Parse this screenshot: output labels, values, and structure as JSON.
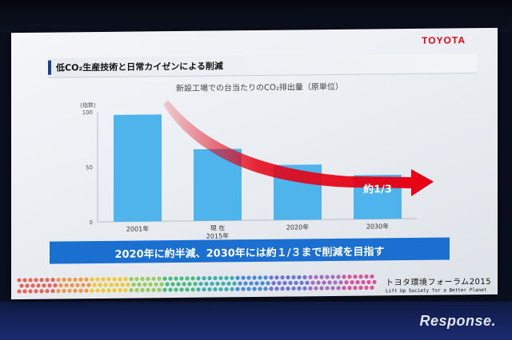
{
  "slide": {
    "brand": "TOYOTA",
    "title": "低CO₂生産技術と日常カイゼンによる削減",
    "banner": "2020年に約半減、2030年には約１/３まで削減を目指す",
    "forum_name": "トヨタ環境フォーラム2015",
    "forum_sub": "Lift Up Society for a Better Planet"
  },
  "watermark": "Response.",
  "chart_data": {
    "type": "bar",
    "title": "新設工場での台当たりのCO₂排出量（原単位）",
    "ylabel": "(指数)",
    "xlabel": "",
    "ylim": [
      0,
      100
    ],
    "yticks": [
      "0",
      "50",
      "100"
    ],
    "grid": false,
    "categories": [
      "2001年",
      "現 在\n2015年",
      "2020年",
      "2030年"
    ],
    "values": [
      97,
      65,
      50,
      40
    ],
    "bar_color": "#4fb3ec",
    "annotations": [
      {
        "text": "約1/3",
        "category_index": 3
      }
    ],
    "trend_arrow_color": "#e60012"
  }
}
